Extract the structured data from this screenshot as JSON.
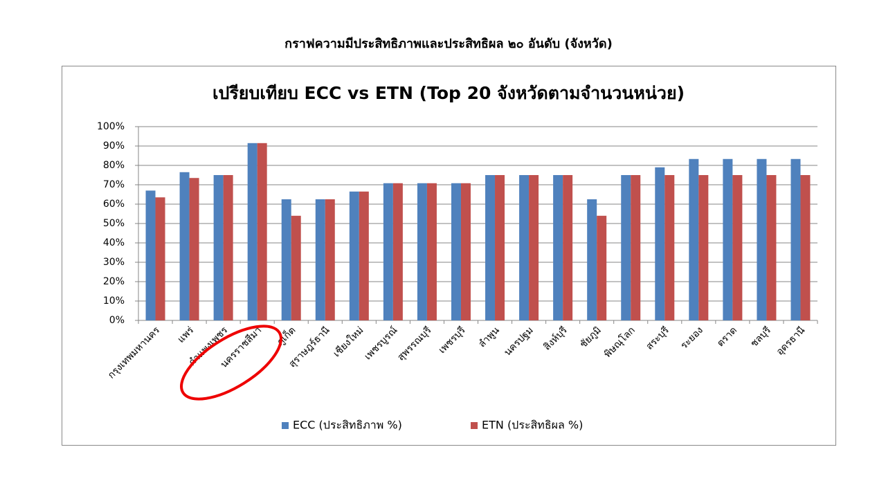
{
  "slide_title": "กราฟความมีประสิทธิภาพและประสิทธิผล ๒๐ อันดับ (จังหวัด)",
  "chart_data": {
    "type": "bar",
    "title": "เปรียบเทียบ ECC vs ETN (Top 20 จังหวัดตามจำนวนหน่วย)",
    "categories": [
      "กรุงเทพมหานคร",
      "แพร่",
      "กำแพงเพชร",
      "นครราชสีมา",
      "ภูเก็ต",
      "สุราษฎร์ธานี",
      "เชียงใหม่",
      "เพชรบูรณ์",
      "สุพรรณบุรี",
      "เพชรบุรี",
      "ลำพูน",
      "นครปฐม",
      "สิงห์บุรี",
      "ชัยภูมิ",
      "พิษณุโลก",
      "สระบุรี",
      "ระยอง",
      "ตราด",
      "ชลบุรี",
      "อุดรธานี"
    ],
    "series": [
      {
        "name": "ECC (ประสิทธิภาพ %)",
        "color": "#4f81bd",
        "values": [
          67,
          76.5,
          75,
          91.5,
          62.5,
          62.5,
          66.5,
          70.8,
          70.8,
          70.8,
          75,
          75,
          75,
          62.5,
          75,
          79,
          83.3,
          83.3,
          83.3,
          83.3
        ]
      },
      {
        "name": "ETN (ประสิทธิผล %)",
        "color": "#c0504d",
        "values": [
          63.5,
          73.5,
          75,
          91.5,
          54,
          62.5,
          66.5,
          70.8,
          70.8,
          70.8,
          75,
          75,
          75,
          54,
          75,
          75,
          75,
          75,
          75,
          75
        ]
      }
    ],
    "ylim": [
      0,
      100
    ],
    "yticks": [
      {
        "value": 0,
        "label": "0%"
      },
      {
        "value": 10,
        "label": "10%"
      },
      {
        "value": 20,
        "label": "20%"
      },
      {
        "value": 30,
        "label": "30%"
      },
      {
        "value": 40,
        "label": "40%"
      },
      {
        "value": 50,
        "label": "50%"
      },
      {
        "value": 60,
        "label": "60%"
      },
      {
        "value": 70,
        "label": "70%"
      },
      {
        "value": 80,
        "label": "80%"
      },
      {
        "value": 90,
        "label": "90%"
      },
      {
        "value": 100,
        "label": "100%"
      }
    ],
    "grid": true,
    "legend": "bottom"
  }
}
